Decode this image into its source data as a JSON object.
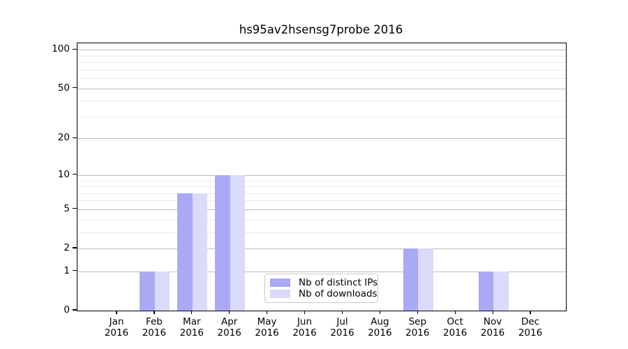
{
  "chart_data": {
    "type": "bar",
    "title": "hs95av2hsensg7probe 2016",
    "categories": [
      "Jan",
      "Feb",
      "Mar",
      "Apr",
      "May",
      "Jun",
      "Jul",
      "Aug",
      "Sep",
      "Oct",
      "Nov",
      "Dec"
    ],
    "x_year_label": "2016",
    "series": [
      {
        "key": "distinct-ips",
        "name": "Nb of distinct IPs",
        "color": "#a9a9f5",
        "values": [
          0,
          1,
          7,
          10,
          0,
          0,
          0,
          0,
          2,
          0,
          1,
          0
        ]
      },
      {
        "key": "downloads",
        "name": "Nb of downloads",
        "color": "#dadaf9",
        "values": [
          0,
          1,
          7,
          10,
          0,
          0,
          0,
          0,
          2,
          0,
          1,
          0
        ]
      }
    ],
    "yscale": "log1p",
    "ylim": [
      0,
      112
    ],
    "y_ticks": [
      0,
      1,
      2,
      5,
      10,
      20,
      50,
      100
    ],
    "y_tick_labels": [
      "0",
      "1",
      "2",
      "5",
      "10",
      "20",
      "50",
      "100"
    ],
    "y_minor_gridlines": [
      3,
      4,
      6,
      7,
      8,
      9,
      30,
      40,
      60,
      70,
      80,
      90,
      110
    ],
    "grid": true,
    "legend_position": "lower center",
    "colors": {
      "grid_major": "#bcbcbc",
      "grid_minor": "#e9e9e9",
      "axis": "#000000",
      "background": "#ffffff"
    }
  }
}
